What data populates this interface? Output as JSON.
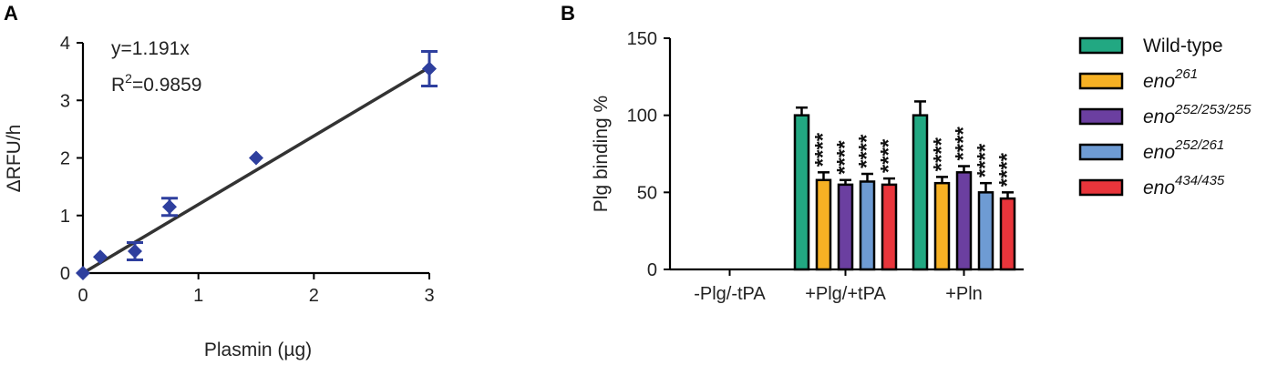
{
  "colors": {
    "points": "#2E3F9E",
    "fit_line": "#333333",
    "wild_type": "#22A882",
    "eno261": "#F6B124",
    "eno252_253_255": "#6B3FA0",
    "eno252_261": "#6E9BD3",
    "eno434_435": "#E8353B"
  },
  "chart_data": [
    {
      "panel": "A",
      "type": "scatter",
      "xlabel": "Plasmin (µg)",
      "ylabel": "ΔRFU/h",
      "xlim": [
        0,
        3
      ],
      "ylim": [
        0,
        4
      ],
      "xticks": [
        "0",
        "1",
        "2",
        "3"
      ],
      "yticks": [
        "0",
        "1",
        "2",
        "3",
        "4"
      ],
      "x": [
        0,
        0.15,
        0.45,
        0.75,
        1.5,
        3
      ],
      "y": [
        0,
        0.28,
        0.38,
        1.15,
        2.0,
        3.55
      ],
      "yerr": [
        0,
        0,
        0.15,
        0.15,
        0,
        0.3
      ],
      "fit": {
        "slope": 1.191,
        "equation": "y=1.191x",
        "r2_prefix": "R",
        "r2_exp": "2",
        "r2_value": "=0.9859"
      }
    },
    {
      "panel": "B",
      "type": "bar",
      "ylabel": "Plg binding %",
      "ylim": [
        0,
        150
      ],
      "yticks": [
        "0",
        "50",
        "100",
        "150"
      ],
      "categories": [
        "-Plg/-tPA",
        "+Plg/+tPA",
        "+Pln"
      ],
      "series": [
        {
          "key": "wild_type",
          "prefix": "Wild-type",
          "sup": "",
          "italic": false,
          "values": [
            0,
            100,
            100
          ],
          "errors": [
            0,
            5,
            9
          ],
          "stars": [
            "",
            "",
            ""
          ]
        },
        {
          "key": "eno261",
          "prefix": "eno",
          "sup": "261",
          "italic": true,
          "values": [
            0,
            58,
            56
          ],
          "errors": [
            0,
            5,
            4
          ],
          "stars": [
            "",
            "****",
            "****"
          ]
        },
        {
          "key": "eno252_253_255",
          "prefix": "eno",
          "sup": "252/253/255",
          "italic": true,
          "values": [
            0,
            55,
            63
          ],
          "errors": [
            0,
            3,
            4
          ],
          "stars": [
            "",
            "****",
            "****"
          ]
        },
        {
          "key": "eno252_261",
          "prefix": "eno",
          "sup": "252/261",
          "italic": true,
          "values": [
            0,
            57,
            50
          ],
          "errors": [
            0,
            5,
            6
          ],
          "stars": [
            "",
            "****",
            "****"
          ]
        },
        {
          "key": "eno434_435",
          "prefix": "eno",
          "sup": "434/435",
          "italic": true,
          "values": [
            0,
            55,
            46
          ],
          "errors": [
            0,
            4,
            4
          ],
          "stars": [
            "",
            "****",
            "****"
          ]
        }
      ],
      "legend_placement": "right"
    }
  ],
  "panel_labels": [
    "A",
    "B"
  ]
}
